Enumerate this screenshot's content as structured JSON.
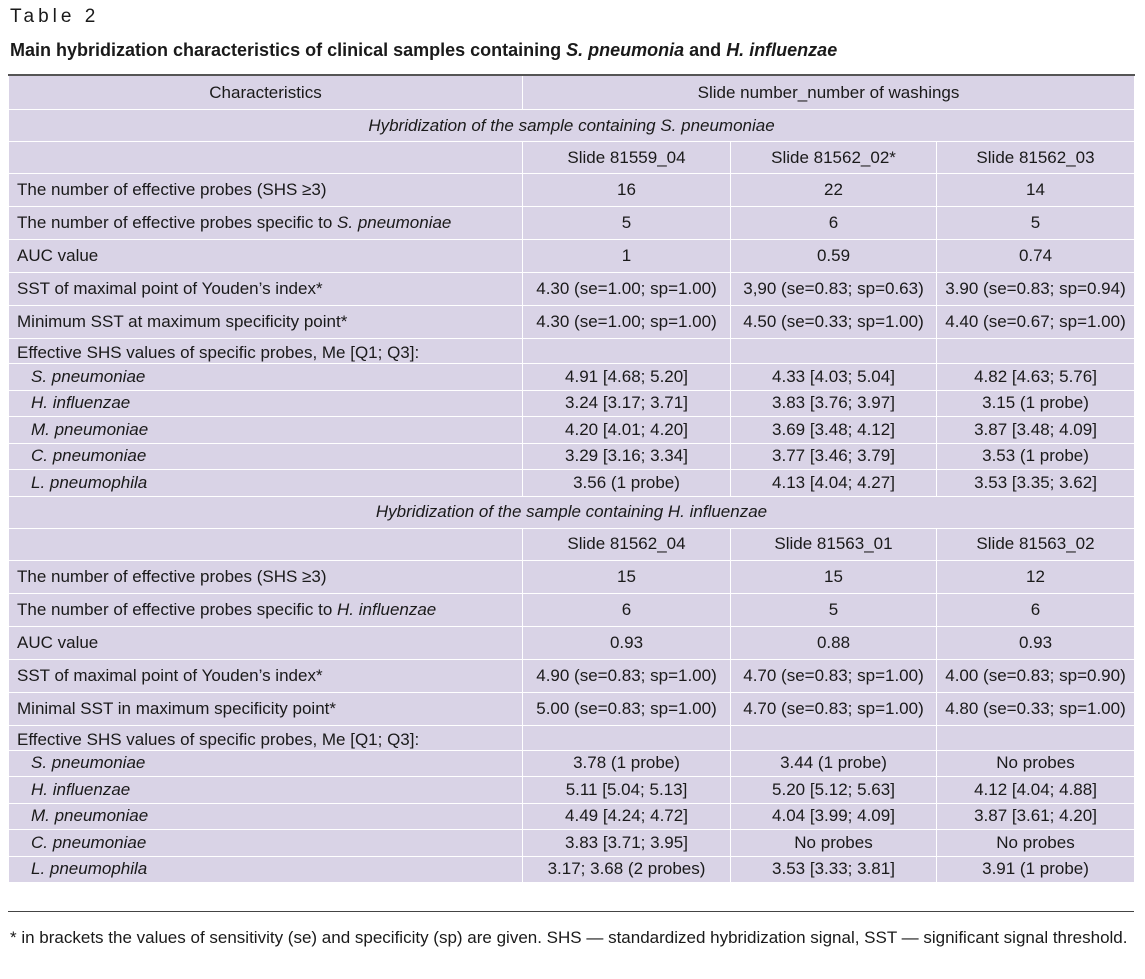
{
  "label": "Table 2",
  "title": {
    "prefix": "Main hybridization characteristics of clinical samples containing ",
    "org1": "S. pneumonia",
    "mid": " and ",
    "org2": "H. influenzae"
  },
  "header": {
    "characteristics": "Characteristics",
    "slide_number": "Slide number_number of washings"
  },
  "section1": {
    "title": "Hybridization of the sample containing S. pneumoniae",
    "slides": [
      "Slide 81559_04",
      "Slide 81562_02*",
      "Slide 81562_03"
    ],
    "effective_probes": {
      "label": "The number of effective probes (SHS ≥3)",
      "values": [
        "16",
        "22",
        "14"
      ]
    },
    "specific_probes": {
      "label_prefix": "The number of effective probes specific to ",
      "label_org": "S. pneumoniae",
      "values": [
        "5",
        "6",
        "5"
      ]
    },
    "auc": {
      "label": "AUC value",
      "values": [
        "1",
        "0.59",
        "0.74"
      ]
    },
    "youden": {
      "label": "SST of maximal point of Youden’s index*",
      "values": [
        "4.30 (se=1.00; sp=1.00)",
        "3,90 (se=0.83; sp=0.63)",
        "3.90 (se=0.83; sp=0.94)"
      ]
    },
    "min_sst": {
      "label": "Minimum SST at maximum specificity point*",
      "values": [
        "4.30 (se=1.00; sp=1.00)",
        "4.50 (se=0.33; sp=1.00)",
        "4.40 (se=0.67; sp=1.00)"
      ]
    },
    "shs_label": "Effective SHS values of specific probes, Me [Q1; Q3]:",
    "species": [
      {
        "name": "S. pneumoniae",
        "values": [
          "4.91 [4.68; 5.20]",
          "4.33 [4.03; 5.04]",
          "4.82 [4.63; 5.76]"
        ]
      },
      {
        "name": "H. influenzae",
        "values": [
          "3.24 [3.17; 3.71]",
          "3.83 [3.76; 3.97]",
          "3.15 (1 probe)"
        ]
      },
      {
        "name": "M. pneumoniae",
        "values": [
          "4.20 [4.01; 4.20]",
          "3.69 [3.48; 4.12]",
          "3.87 [3.48; 4.09]"
        ]
      },
      {
        "name": "C. pneumoniae",
        "values": [
          "3.29 [3.16; 3.34]",
          "3.77 [3.46; 3.79]",
          "3.53 (1 probe)"
        ]
      },
      {
        "name": "L. pneumophila",
        "values": [
          "3.56 (1 probe)",
          "4.13 [4.04; 4.27]",
          "3.53 [3.35; 3.62]"
        ]
      }
    ]
  },
  "section2": {
    "title": "Hybridization of the sample containing H. influenzae",
    "slides": [
      "Slide 81562_04",
      "Slide 81563_01",
      "Slide 81563_02"
    ],
    "effective_probes": {
      "label": "The number of effective probes (SHS ≥3)",
      "values": [
        "15",
        "15",
        "12"
      ]
    },
    "specific_probes": {
      "label_prefix": "The number of effective probes specific to ",
      "label_org": "H. influenzae",
      "values": [
        "6",
        "5",
        "6"
      ]
    },
    "auc": {
      "label": "AUC value",
      "values": [
        "0.93",
        "0.88",
        "0.93"
      ]
    },
    "youden": {
      "label": "SST of maximal point of Youden’s index*",
      "values": [
        "4.90 (se=0.83; sp=1.00)",
        "4.70 (se=0.83; sp=1.00)",
        "4.00 (se=0.83; sp=0.90)"
      ]
    },
    "min_sst": {
      "label": "Minimal SST in maximum specificity point*",
      "values": [
        "5.00 (se=0.83; sp=1.00)",
        "4.70 (se=0.83; sp=1.00)",
        "4.80 (se=0.33; sp=1.00)"
      ]
    },
    "shs_label": "Effective SHS values of specific probes, Me [Q1; Q3]:",
    "species": [
      {
        "name": "S. pneumoniae",
        "values": [
          "3.78 (1 probe)",
          "3.44 (1 probe)",
          "No probes"
        ]
      },
      {
        "name": "H. influenzae",
        "values": [
          "5.11 [5.04; 5.13]",
          "5.20 [5.12; 5.63]",
          "4.12 [4.04; 4.88]"
        ]
      },
      {
        "name": "M. pneumoniae",
        "values": [
          "4.49 [4.24; 4.72]",
          "4.04 [3.99; 4.09]",
          "3.87 [3.61; 4.20]"
        ]
      },
      {
        "name": "C. pneumoniae",
        "values": [
          "3.83 [3.71; 3.95]",
          "No probes",
          "No probes"
        ]
      },
      {
        "name": "L. pneumophila",
        "values": [
          "3.17; 3.68 (2 probes)",
          "3.53 [3.33; 3.81]",
          "3.91 (1 probe)"
        ]
      }
    ]
  },
  "footnote": "* in brackets the values of sensitivity (se) and specificity (sp) are given. SHS — standardized hybridization signal, SST — significant signal threshold.",
  "colors": {
    "cell_bg": "#d9d3e6"
  }
}
